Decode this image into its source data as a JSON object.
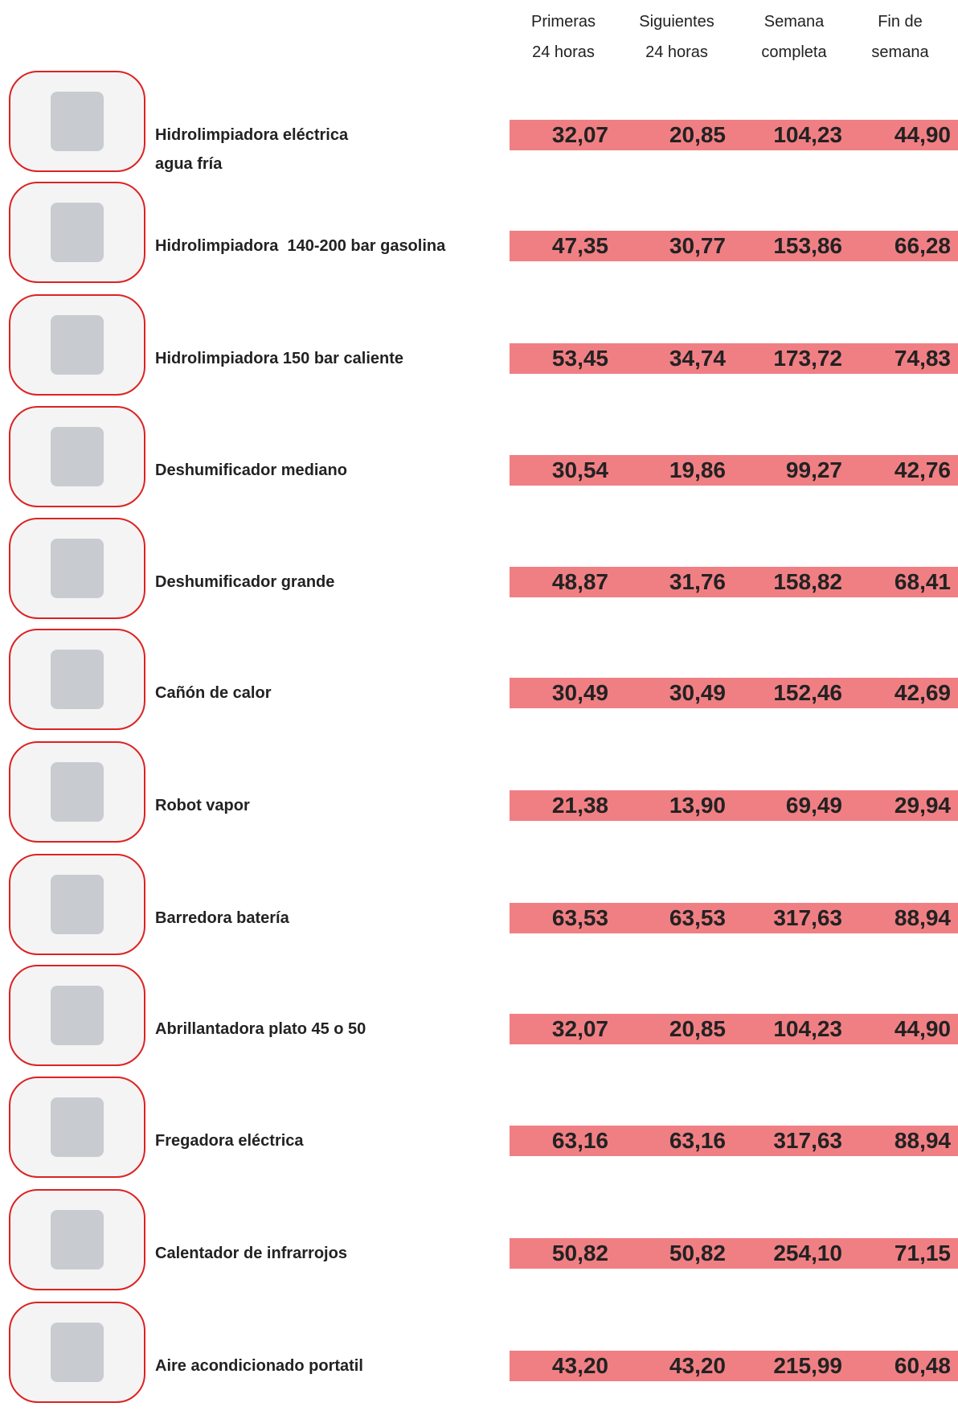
{
  "header": {
    "columns": [
      [
        "Primeras",
        "24 horas"
      ],
      [
        "Siguientes",
        "24 horas"
      ],
      [
        "Semana",
        "completa"
      ],
      [
        "Fin de",
        "semana"
      ]
    ]
  },
  "rows": [
    {
      "name": [
        "Hidrolimpiadora eléctrica",
        "agua fría"
      ],
      "prices": [
        "32,07",
        "20,85",
        "104,23",
        "44,90"
      ]
    },
    {
      "name": [
        "Hidrolimpiadora  140-200 bar gasolina"
      ],
      "prices": [
        "47,35",
        "30,77",
        "153,86",
        "66,28"
      ]
    },
    {
      "name": [
        "Hidrolimpiadora 150 bar caliente"
      ],
      "prices": [
        "53,45",
        "34,74",
        "173,72",
        "74,83"
      ]
    },
    {
      "name": [
        "Deshumificador mediano"
      ],
      "prices": [
        "30,54",
        "19,86",
        "99,27",
        "42,76"
      ]
    },
    {
      "name": [
        "Deshumificador grande"
      ],
      "prices": [
        "48,87",
        "31,76",
        "158,82",
        "68,41"
      ]
    },
    {
      "name": [
        "Cañón de calor"
      ],
      "prices": [
        "30,49",
        "30,49",
        "152,46",
        "42,69"
      ]
    },
    {
      "name": [
        "Robot vapor"
      ],
      "prices": [
        "21,38",
        "13,90",
        "69,49",
        "29,94"
      ]
    },
    {
      "name": [
        "Barredora batería"
      ],
      "prices": [
        "63,53",
        "63,53",
        "317,63",
        "88,94"
      ]
    },
    {
      "name": [
        "Abrillantadora plato 45 o 50"
      ],
      "prices": [
        "32,07",
        "20,85",
        "104,23",
        "44,90"
      ]
    },
    {
      "name": [
        "Fregadora eléctrica"
      ],
      "prices": [
        "63,16",
        "63,16",
        "317,63",
        "88,94"
      ]
    },
    {
      "name": [
        "Calentador de infrarrojos"
      ],
      "prices": [
        "50,82",
        "50,82",
        "254,10",
        "71,15"
      ]
    },
    {
      "name": [
        "Aire acondicionado portatil"
      ],
      "prices": [
        "43,20",
        "43,20",
        "215,99",
        "60,48"
      ]
    }
  ]
}
